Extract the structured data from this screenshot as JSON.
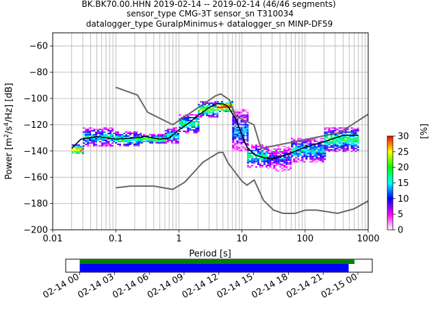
{
  "header": {
    "line1": "BK.BK70.00.HHN   2019-02-14 -- 2019-02-14  (46/46 segments)",
    "line2": "sensor_type CMG-3T sensor_sn T310034",
    "line3": "datalogger_type GuralpMinimus+ datalogger_sn MINP-DF59"
  },
  "chart_data": {
    "type": "heatmap",
    "xlabel": "Period [s]",
    "ylabel_prefix": "Power [m",
    "ylabel_suffix": "/Hz] [dB]",
    "x_scale": "log",
    "xlim": [
      0.01,
      1000
    ],
    "ylim": [
      -200,
      -50
    ],
    "x_ticks": [
      {
        "value": 0.01,
        "label": "0.01"
      },
      {
        "value": 0.1,
        "label": "0.1"
      },
      {
        "value": 1,
        "label": "1"
      },
      {
        "value": 10,
        "label": "10"
      },
      {
        "value": 100,
        "label": "100"
      },
      {
        "value": 1000,
        "label": "1000"
      }
    ],
    "y_ticks": [
      {
        "value": -60,
        "label": "−60"
      },
      {
        "value": -80,
        "label": "−80"
      },
      {
        "value": -100,
        "label": "−100"
      },
      {
        "value": -120,
        "label": "−120"
      },
      {
        "value": -140,
        "label": "−140"
      },
      {
        "value": -160,
        "label": "−160"
      },
      {
        "value": -180,
        "label": "−180"
      },
      {
        "value": -200,
        "label": "−200"
      }
    ],
    "grid": true,
    "noise_model_high": [
      [
        0.1,
        -91.5
      ],
      [
        0.22,
        -97.4
      ],
      [
        0.32,
        -110.5
      ],
      [
        0.8,
        -120
      ],
      [
        3.8,
        -98
      ],
      [
        4.6,
        -96.5
      ],
      [
        6.3,
        -101
      ],
      [
        7.9,
        -113.5
      ],
      [
        15.4,
        -120
      ],
      [
        20,
        -138
      ],
      [
        354,
        -126
      ],
      [
        1000,
        -112
      ]
    ],
    "noise_model_low": [
      [
        0.1,
        -168
      ],
      [
        0.17,
        -166.7
      ],
      [
        0.4,
        -166.7
      ],
      [
        0.8,
        -169.2
      ],
      [
        1.24,
        -163.7
      ],
      [
        2.4,
        -148.6
      ],
      [
        4.3,
        -141.1
      ],
      [
        5,
        -141.1
      ],
      [
        6,
        -149
      ],
      [
        10,
        -163
      ],
      [
        12,
        -166
      ],
      [
        15.6,
        -162.1
      ],
      [
        21.9,
        -177.5
      ],
      [
        31.6,
        -185
      ],
      [
        45,
        -187.5
      ],
      [
        70,
        -187.5
      ],
      [
        101,
        -185
      ],
      [
        154,
        -185
      ],
      [
        328,
        -187.5
      ],
      [
        600,
        -184
      ],
      [
        1000,
        -178
      ]
    ],
    "mean_psd": [
      [
        0.02,
        -138
      ],
      [
        0.028,
        -131
      ],
      [
        0.05,
        -129
      ],
      [
        0.1,
        -131
      ],
      [
        0.2,
        -130
      ],
      [
        0.3,
        -129
      ],
      [
        0.5,
        -131
      ],
      [
        0.7,
        -130
      ],
      [
        1,
        -124
      ],
      [
        1.5,
        -118
      ],
      [
        2,
        -113
      ],
      [
        3,
        -107
      ],
      [
        4,
        -104
      ],
      [
        5,
        -104
      ],
      [
        6,
        -106
      ],
      [
        8,
        -116
      ],
      [
        10,
        -128
      ],
      [
        12,
        -137
      ],
      [
        16,
        -143
      ],
      [
        22,
        -145
      ],
      [
        30,
        -146
      ],
      [
        50,
        -143
      ],
      [
        80,
        -139
      ],
      [
        100,
        -137
      ],
      [
        200,
        -133
      ],
      [
        400,
        -128
      ],
      [
        700,
        -128
      ]
    ],
    "density_rows": [
      {
        "x0": 0.02,
        "x1": 0.03,
        "lo": -142,
        "hi": -135,
        "level": 22
      },
      {
        "x0": 0.03,
        "x1": 0.09,
        "lo": -136,
        "hi": -122,
        "level": 12
      },
      {
        "x0": 0.09,
        "x1": 0.25,
        "lo": -136,
        "hi": -125,
        "level": 14
      },
      {
        "x0": 0.25,
        "x1": 0.6,
        "lo": -134,
        "hi": -127,
        "level": 16
      },
      {
        "x0": 0.6,
        "x1": 1.0,
        "lo": -134,
        "hi": -122,
        "level": 12
      },
      {
        "x0": 1.0,
        "x1": 2.0,
        "lo": -126,
        "hi": -112,
        "level": 14
      },
      {
        "x0": 2.0,
        "x1": 4.0,
        "lo": -114,
        "hi": -102,
        "level": 16
      },
      {
        "x0": 4.0,
        "x1": 7.0,
        "lo": -110,
        "hi": -102,
        "level": 24
      },
      {
        "x0": 7.0,
        "x1": 12.0,
        "lo": -140,
        "hi": -108,
        "level": 10
      },
      {
        "x0": 12.0,
        "x1": 25.0,
        "lo": -152,
        "hi": -135,
        "level": 13
      },
      {
        "x0": 25.0,
        "x1": 60.0,
        "lo": -155,
        "hi": -136,
        "level": 8
      },
      {
        "x0": 60.0,
        "x1": 200.0,
        "lo": -148,
        "hi": -130,
        "level": 12
      },
      {
        "x0": 200.0,
        "x1": 700.0,
        "lo": -140,
        "hi": -122,
        "level": 14
      }
    ]
  },
  "colorbar": {
    "label": "[%]",
    "min": 0,
    "max": 30,
    "ticks": [
      {
        "value": 0,
        "label": "0"
      },
      {
        "value": 5,
        "label": "5"
      },
      {
        "value": 10,
        "label": "10"
      },
      {
        "value": 15,
        "label": "15"
      },
      {
        "value": 20,
        "label": "20"
      },
      {
        "value": 25,
        "label": "25"
      },
      {
        "value": 30,
        "label": "30"
      }
    ],
    "colors": [
      "#ffffff",
      "#ff00ff",
      "#0000ff",
      "#00ffff",
      "#00ff00",
      "#ffff00",
      "#ff0000"
    ]
  },
  "timeline": {
    "start": "2019-02-14 00:00",
    "end": "2019-02-15 00:00",
    "data_bar": {
      "from_hours": 0,
      "to_hours": 23.7,
      "color": "#008000"
    },
    "psd_bar": {
      "from_hours": 0,
      "to_hours": 23.2,
      "color": "#0000ff"
    },
    "ticks": [
      {
        "hours": 0,
        "label": "02-14 00"
      },
      {
        "hours": 3,
        "label": "02-14 03"
      },
      {
        "hours": 6,
        "label": "02-14 06"
      },
      {
        "hours": 9,
        "label": "02-14 09"
      },
      {
        "hours": 12,
        "label": "02-14 12"
      },
      {
        "hours": 15,
        "label": "02-14 15"
      },
      {
        "hours": 18,
        "label": "02-14 18"
      },
      {
        "hours": 21,
        "label": "02-14 21"
      },
      {
        "hours": 24,
        "label": "02-15 00"
      }
    ]
  },
  "colors": {
    "noise_model": "#666666",
    "mean": "#000000",
    "grid": "#b0b0b0"
  }
}
